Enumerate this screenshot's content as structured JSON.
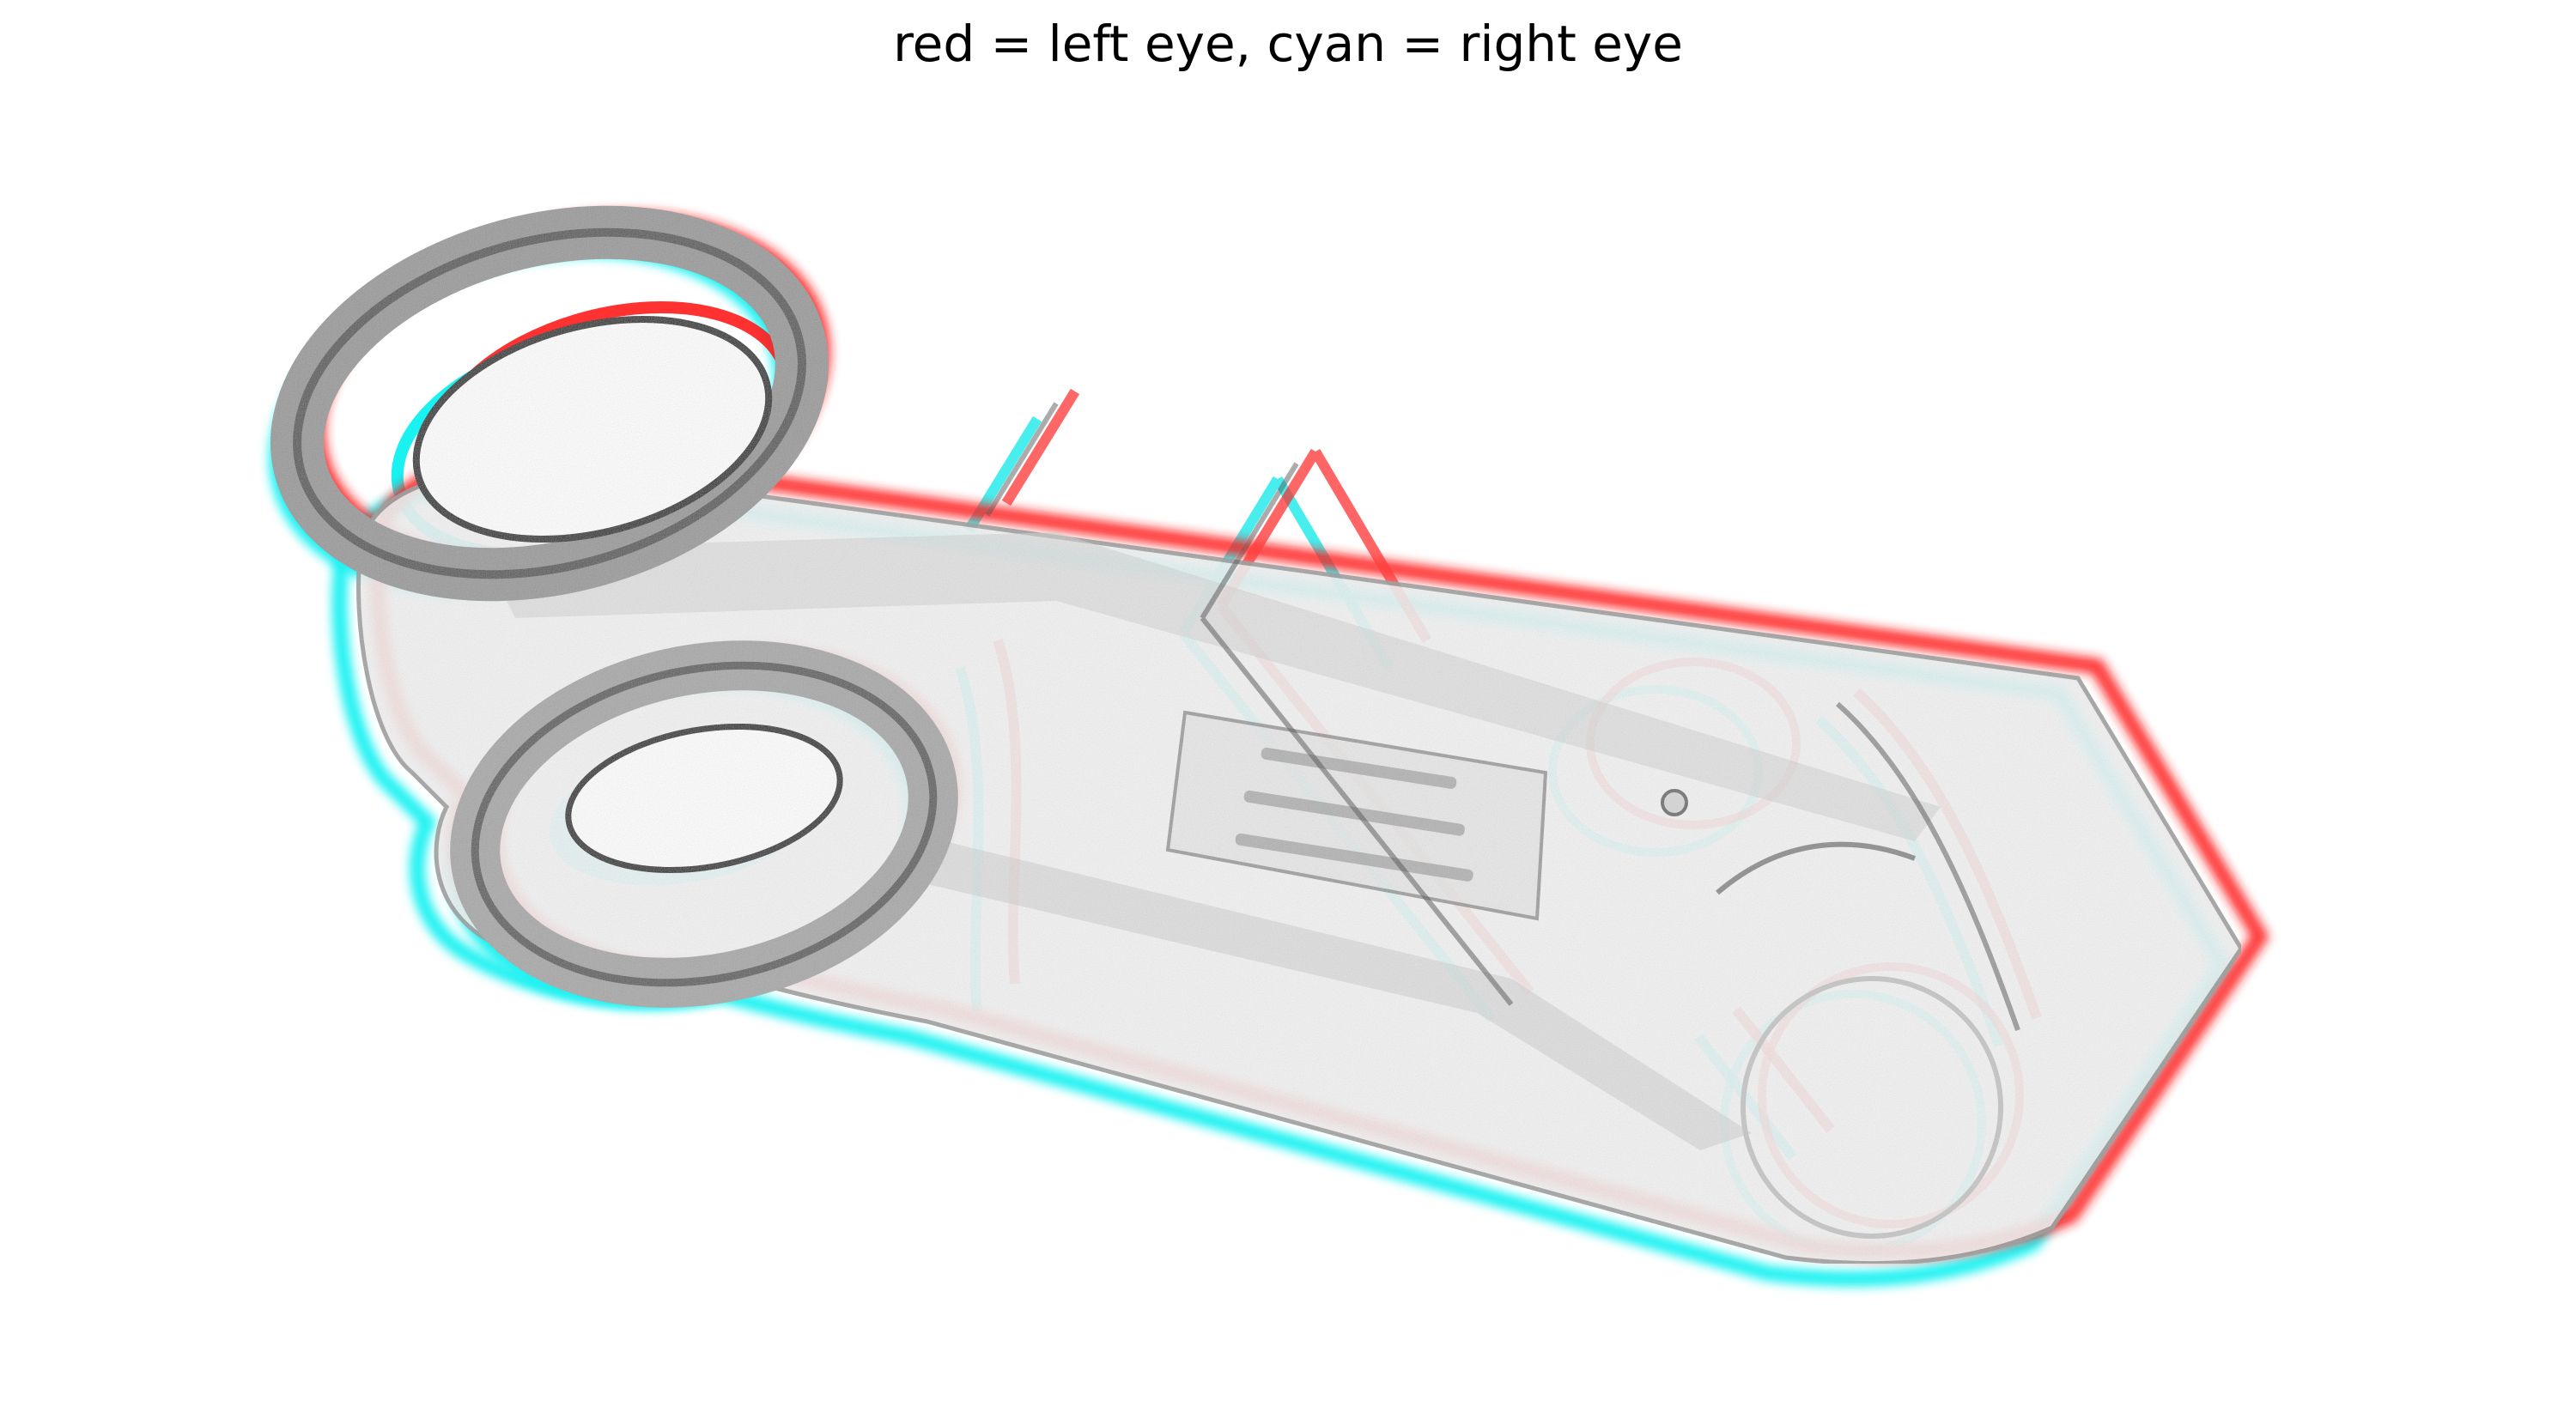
{
  "figure": {
    "title": "red = left eye, cyan = right eye"
  },
  "colors": {
    "left_eye": "#ff1a1a",
    "right_eye": "#00f0f0",
    "background": "#ffffff",
    "surface": "#f4f4f4",
    "shadow": "#2a2a2a"
  },
  "object": {
    "description_icon": "scissors-sheath-anaglyph"
  }
}
